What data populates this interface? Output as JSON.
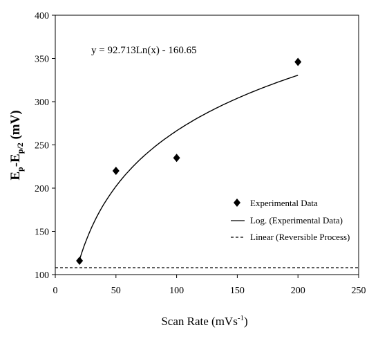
{
  "chart_data": {
    "type": "scatter",
    "equation": "y = 92.713Ln(x) - 160.65",
    "xlabel": {
      "main": "Scan Rate (mVs",
      "sup": "-1",
      "tail": ")"
    },
    "ylabel": {
      "e1": "E",
      "s1": "p",
      "mid": "-E",
      "s2": "p/2",
      "tail": " (mV)"
    },
    "xlim": [
      0,
      250
    ],
    "ylim": [
      100,
      400
    ],
    "xticks": [
      0,
      50,
      100,
      150,
      200,
      250
    ],
    "yticks": [
      100,
      150,
      200,
      250,
      300,
      350,
      400
    ],
    "grid": false,
    "legend_position": "bottom-right",
    "series": [
      {
        "name": "Experimental Data",
        "kind": "points",
        "marker": "diamond",
        "x": [
          20,
          50,
          100,
          200
        ],
        "y": [
          116,
          220,
          235,
          346
        ]
      },
      {
        "name": "Log. (Experimental Data)",
        "kind": "log-fit",
        "a": 92.713,
        "b": -160.65,
        "x_range": [
          20,
          200
        ]
      },
      {
        "name": "Linear (Reversible Process)",
        "kind": "dashed-line",
        "x": [
          0,
          250
        ],
        "y": [
          108,
          108
        ]
      }
    ],
    "colors": {
      "marks": "#000000",
      "background": "#ffffff"
    }
  }
}
